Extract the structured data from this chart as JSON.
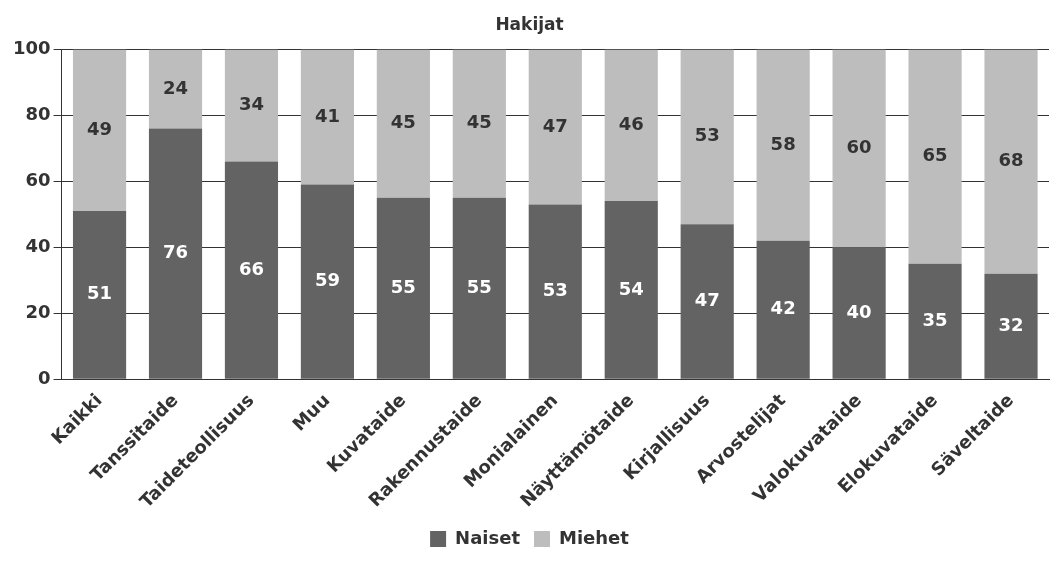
{
  "chart_data": {
    "type": "bar",
    "title": "Hakijat",
    "stacked": true,
    "grid": "y",
    "legend": "bottom",
    "data_labels": true,
    "categories": [
      "Kaikki",
      "Tanssitaide",
      "Taideteollisuus",
      "Muu",
      "Kuvataide",
      "Rakennustaide",
      "Monialainen",
      "Näyttämötaide",
      "Kirjallisuus",
      "Arvostelijat",
      "Valokuvataide",
      "Elokuvataide",
      "Säveltaide"
    ],
    "series": [
      {
        "name": "Naiset",
        "color": "#636363",
        "values": [
          51,
          76,
          66,
          59,
          55,
          55,
          53,
          54,
          47,
          42,
          40,
          35,
          32
        ]
      },
      {
        "name": "Miehet",
        "color": "#bdbdbd",
        "values": [
          49,
          24,
          34,
          41,
          45,
          45,
          47,
          46,
          53,
          58,
          60,
          65,
          68
        ]
      }
    ],
    "ylim": [
      0,
      100
    ],
    "yticks": [
      0,
      20,
      40,
      60,
      80,
      100
    ]
  }
}
